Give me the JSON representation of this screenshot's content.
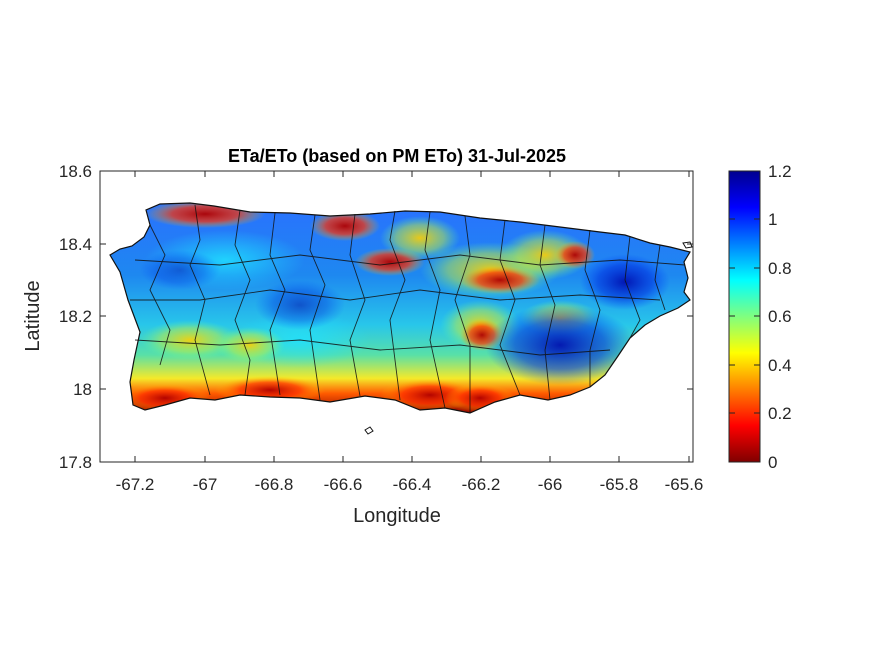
{
  "title": "ETa/ETo (based on PM ETo) 31-Jul-2025",
  "xlabel": "Longitude",
  "ylabel": "Latitude",
  "map": {
    "region": "Puerto Rico",
    "xlim": [
      -67.3,
      -65.58
    ],
    "ylim": [
      17.8,
      18.6
    ],
    "x_ticks": [
      -67.2,
      -67,
      -66.8,
      -66.6,
      -66.4,
      -66.2,
      -66,
      -65.8,
      -65.6
    ],
    "y_ticks": [
      18.6,
      18.4,
      18.2,
      18,
      17.8
    ],
    "x_tick_labels": [
      "-67.2",
      "-67",
      "-66.8",
      "-66.6",
      "-66.4",
      "-66.2",
      "-66",
      "-65.8",
      "-65.6"
    ],
    "y_tick_labels": [
      "18.6",
      "18.4",
      "18.2",
      "18",
      "17.8"
    ]
  },
  "colorbar": {
    "colormap": "jet",
    "min": 0,
    "max": 1.2,
    "ticks": [
      "1.2",
      "1",
      "0.8",
      "0.6",
      "0.4",
      "0.2",
      "0"
    ],
    "tick_values": [
      1.2,
      1,
      0.8,
      0.6,
      0.4,
      0.2,
      0
    ]
  }
}
